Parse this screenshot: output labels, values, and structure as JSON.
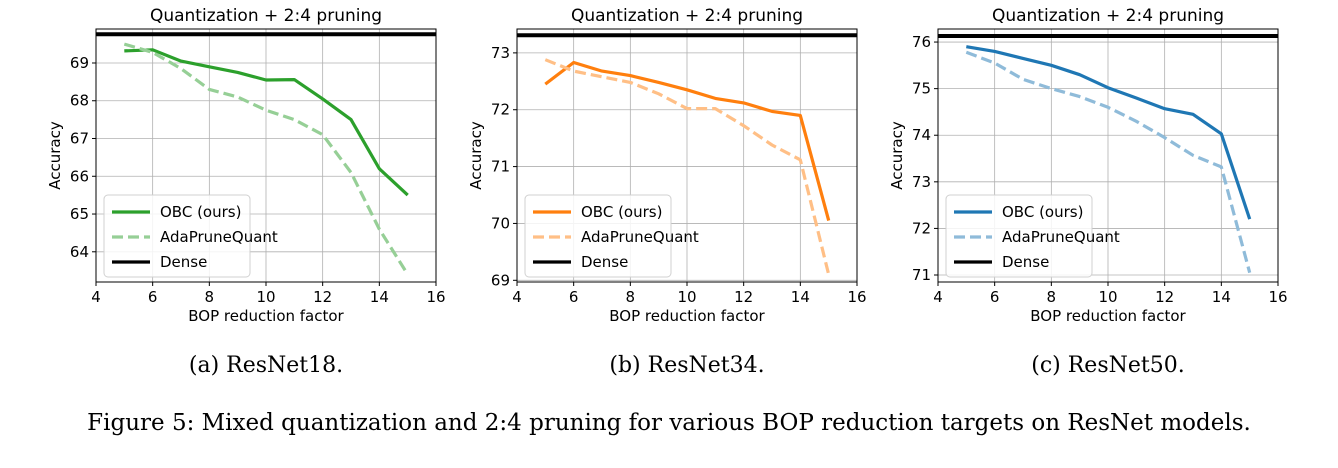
{
  "chart_data": [
    {
      "type": "line",
      "title": "Quantization + 2:4 pruning",
      "xlabel": "BOP reduction factor",
      "ylabel": "Accuracy",
      "xlim": [
        4,
        16
      ],
      "ylim": [
        63.2,
        69.9
      ],
      "xticks": [
        4,
        6,
        8,
        10,
        12,
        14,
        16
      ],
      "yticks": [
        64,
        65,
        66,
        67,
        68,
        69
      ],
      "grid": true,
      "legend_position": "bottom-left",
      "color": "#2ca02c",
      "x": [
        5,
        6,
        7,
        8,
        9,
        10,
        11,
        12,
        13,
        14,
        15
      ],
      "series": [
        {
          "name": "OBC (ours)",
          "style": "solid",
          "values": [
            69.32,
            69.35,
            69.05,
            68.9,
            68.75,
            68.55,
            68.56,
            68.05,
            67.5,
            66.2,
            65.5
          ]
        },
        {
          "name": "AdaPruneQuant",
          "style": "dashed",
          "values": [
            69.5,
            69.28,
            68.85,
            68.3,
            68.1,
            67.75,
            67.5,
            67.1,
            66.1,
            64.6,
            63.4
          ]
        }
      ],
      "reference": {
        "name": "Dense",
        "value": 69.76
      },
      "caption": "(a) ResNet18."
    },
    {
      "type": "line",
      "title": "Quantization + 2:4 pruning",
      "xlabel": "BOP reduction factor",
      "ylabel": "Accuracy",
      "xlim": [
        4,
        16
      ],
      "ylim": [
        68.97,
        73.42
      ],
      "xticks": [
        4,
        6,
        8,
        10,
        12,
        14,
        16
      ],
      "yticks": [
        69,
        70,
        71,
        72,
        73
      ],
      "grid": true,
      "legend_position": "bottom-left",
      "color": "#ff7f0e",
      "x": [
        5,
        6,
        7,
        8,
        9,
        10,
        11,
        12,
        13,
        14,
        15
      ],
      "series": [
        {
          "name": "OBC (ours)",
          "style": "solid",
          "values": [
            72.45,
            72.83,
            72.68,
            72.6,
            72.48,
            72.35,
            72.2,
            72.12,
            71.97,
            71.9,
            70.05
          ]
        },
        {
          "name": "AdaPruneQuant",
          "style": "dashed",
          "values": [
            72.88,
            72.68,
            72.58,
            72.48,
            72.28,
            72.02,
            72.02,
            71.72,
            71.38,
            71.12,
            69.1
          ]
        }
      ],
      "reference": {
        "name": "Dense",
        "value": 73.31
      },
      "caption": "(b) ResNet34."
    },
    {
      "type": "line",
      "title": "Quantization + 2:4 pruning",
      "xlabel": "BOP reduction factor",
      "ylabel": "Accuracy",
      "xlim": [
        4,
        16
      ],
      "ylim": [
        70.85,
        76.28
      ],
      "xticks": [
        4,
        6,
        8,
        10,
        12,
        14,
        16
      ],
      "yticks": [
        71,
        72,
        73,
        74,
        75,
        76
      ],
      "grid": true,
      "legend_position": "bottom-left",
      "color": "#1f77b4",
      "x": [
        5,
        6,
        7,
        8,
        9,
        10,
        11,
        12,
        13,
        14,
        15
      ],
      "series": [
        {
          "name": "OBC (ours)",
          "style": "solid",
          "values": [
            75.9,
            75.8,
            75.65,
            75.5,
            75.3,
            75.02,
            74.8,
            74.57,
            74.45,
            74.03,
            72.2
          ]
        },
        {
          "name": "AdaPruneQuant",
          "style": "dashed",
          "values": [
            75.78,
            75.55,
            75.2,
            75.0,
            74.83,
            74.6,
            74.3,
            73.95,
            73.57,
            73.32,
            71.05
          ]
        }
      ],
      "reference": {
        "name": "Dense",
        "value": 76.13
      },
      "caption": "(c) ResNet50."
    }
  ],
  "figure_caption": "Figure 5: Mixed quantization and 2:4 pruning for various BOP reduction targets on ResNet models."
}
